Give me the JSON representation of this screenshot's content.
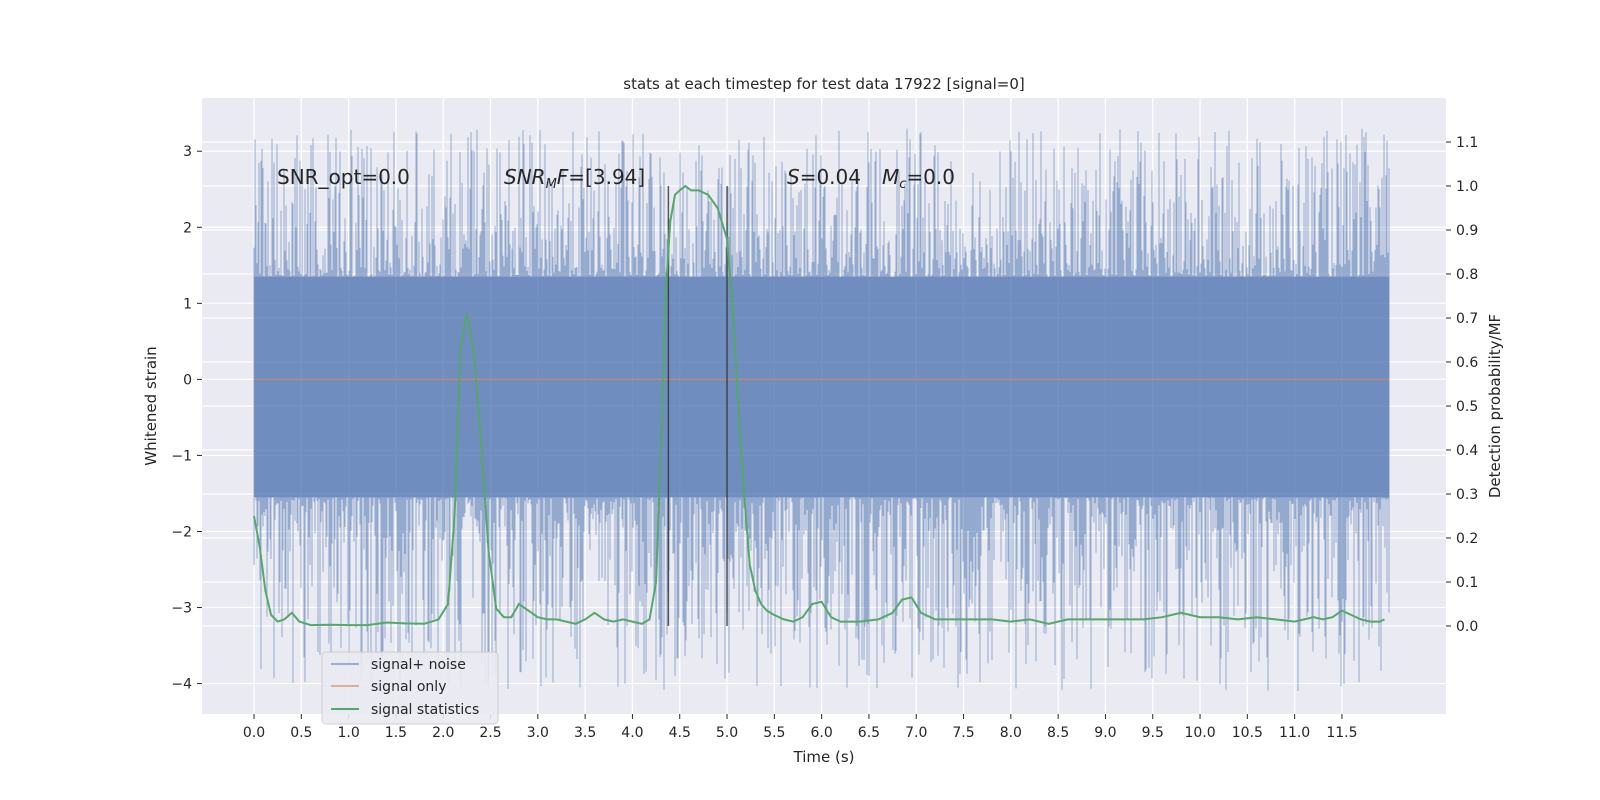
{
  "chart_data": {
    "type": "line",
    "title": "stats at each timestep for test data 17922 [signal=0]",
    "xlabel": "Time (s)",
    "ylabel_left": "Whitened strain",
    "ylabel_right": "Detection probability/MF",
    "xlim": [
      -0.55,
      12.6
    ],
    "ylim_left": [
      -4.4,
      3.7
    ],
    "ylim_right": [
      -0.2,
      1.2
    ],
    "x_ticks": [
      0.0,
      0.5,
      1.0,
      1.5,
      2.0,
      2.5,
      3.0,
      3.5,
      4.0,
      4.5,
      5.0,
      5.5,
      6.0,
      6.5,
      7.0,
      7.5,
      8.0,
      8.5,
      9.0,
      9.5,
      10.0,
      10.5,
      11.0,
      11.5
    ],
    "x_tick_labels": [
      "0.0",
      "0.5",
      "1.0",
      "1.5",
      "2.0",
      "2.5",
      "3.0",
      "3.5",
      "4.0",
      "4.5",
      "5.0",
      "5.5",
      "6.0",
      "6.5",
      "7.0",
      "7.5",
      "8.0",
      "8.5",
      "9.0",
      "9.5",
      "10.0",
      "10.5",
      "11.0",
      "11.5"
    ],
    "y_left_ticks": [
      -4,
      -3,
      -2,
      -1,
      0,
      1,
      2,
      3
    ],
    "y_left_tick_labels": [
      "−4",
      "−3",
      "−2",
      "−1",
      "0",
      "1",
      "2",
      "3"
    ],
    "y_right_ticks": [
      0.0,
      0.1,
      0.2,
      0.3,
      0.4,
      0.5,
      0.6,
      0.7,
      0.8,
      0.9,
      1.0,
      1.1
    ],
    "y_right_tick_labels": [
      "0.0",
      "0.1",
      "0.2",
      "0.3",
      "0.4",
      "0.5",
      "0.6",
      "0.7",
      "0.8",
      "0.9",
      "1.0",
      "1.1"
    ],
    "grid": true,
    "legend_placement": "lower-left",
    "legend": [
      "signal+ noise",
      "signal only",
      "signal statistics"
    ],
    "annotations": {
      "snr_opt": "SNR_opt=0.0",
      "snr_mf_base": "SNR",
      "snr_mf_sub": "M",
      "snr_mf_rest": "F=[3.94]",
      "s_base": "S",
      "s_rest": "=0.04",
      "mc_base": "M",
      "mc_sub": "c",
      "mc_rest": "=0.0"
    },
    "vertical_lines_x": [
      4.38,
      5.0
    ],
    "vertical_lines_ylim_right": [
      0.0,
      1.0
    ],
    "series": [
      {
        "name": "signal+ noise",
        "axis": "left",
        "color": "#4c72b0",
        "x_range": [
          0.0,
          12.0
        ],
        "description_values": {
          "band_low": -1.55,
          "band_high": 1.35,
          "max": 3.3,
          "min": -4.1
        }
      },
      {
        "name": "signal only",
        "axis": "left",
        "color": "#dd8452",
        "x": [
          0.0,
          12.0
        ],
        "y": [
          0.0,
          0.0
        ]
      },
      {
        "name": "signal statistics",
        "axis": "right",
        "color": "#55a868",
        "x": [
          0.0,
          0.06,
          0.12,
          0.18,
          0.25,
          0.32,
          0.4,
          0.48,
          0.6,
          0.8,
          1.0,
          1.2,
          1.4,
          1.6,
          1.8,
          1.95,
          2.05,
          2.12,
          2.18,
          2.25,
          2.32,
          2.4,
          2.48,
          2.56,
          2.64,
          2.72,
          2.8,
          2.9,
          3.0,
          3.1,
          3.2,
          3.3,
          3.4,
          3.5,
          3.6,
          3.7,
          3.8,
          3.9,
          4.0,
          4.1,
          4.18,
          4.25,
          4.3,
          4.35,
          4.4,
          4.45,
          4.5,
          4.56,
          4.62,
          4.7,
          4.8,
          4.9,
          5.0,
          5.06,
          5.12,
          5.18,
          5.24,
          5.3,
          5.36,
          5.42,
          5.5,
          5.6,
          5.7,
          5.8,
          5.9,
          6.0,
          6.1,
          6.2,
          6.4,
          6.6,
          6.75,
          6.85,
          6.95,
          7.05,
          7.2,
          7.5,
          7.8,
          8.0,
          8.2,
          8.4,
          8.6,
          9.0,
          9.4,
          9.6,
          9.8,
          10.0,
          10.2,
          10.4,
          10.6,
          10.8,
          11.0,
          11.1,
          11.2,
          11.3,
          11.4,
          11.5,
          11.6,
          11.7,
          11.8,
          11.9,
          11.95
        ],
        "y": [
          0.25,
          0.18,
          0.08,
          0.025,
          0.01,
          0.015,
          0.03,
          0.01,
          0.002,
          0.003,
          0.002,
          0.002,
          0.008,
          0.006,
          0.005,
          0.015,
          0.05,
          0.25,
          0.63,
          0.71,
          0.63,
          0.42,
          0.17,
          0.04,
          0.02,
          0.02,
          0.05,
          0.035,
          0.02,
          0.015,
          0.015,
          0.01,
          0.005,
          0.015,
          0.03,
          0.015,
          0.01,
          0.015,
          0.01,
          0.005,
          0.015,
          0.1,
          0.4,
          0.75,
          0.92,
          0.98,
          0.99,
          1.0,
          0.99,
          0.99,
          0.98,
          0.95,
          0.88,
          0.72,
          0.5,
          0.3,
          0.14,
          0.08,
          0.05,
          0.035,
          0.025,
          0.015,
          0.01,
          0.02,
          0.05,
          0.055,
          0.02,
          0.01,
          0.01,
          0.015,
          0.03,
          0.06,
          0.065,
          0.03,
          0.015,
          0.015,
          0.015,
          0.01,
          0.015,
          0.005,
          0.015,
          0.015,
          0.015,
          0.02,
          0.03,
          0.02,
          0.02,
          0.015,
          0.02,
          0.015,
          0.01,
          0.015,
          0.02,
          0.015,
          0.02,
          0.035,
          0.025,
          0.015,
          0.01,
          0.01,
          0.015
        ]
      }
    ]
  }
}
